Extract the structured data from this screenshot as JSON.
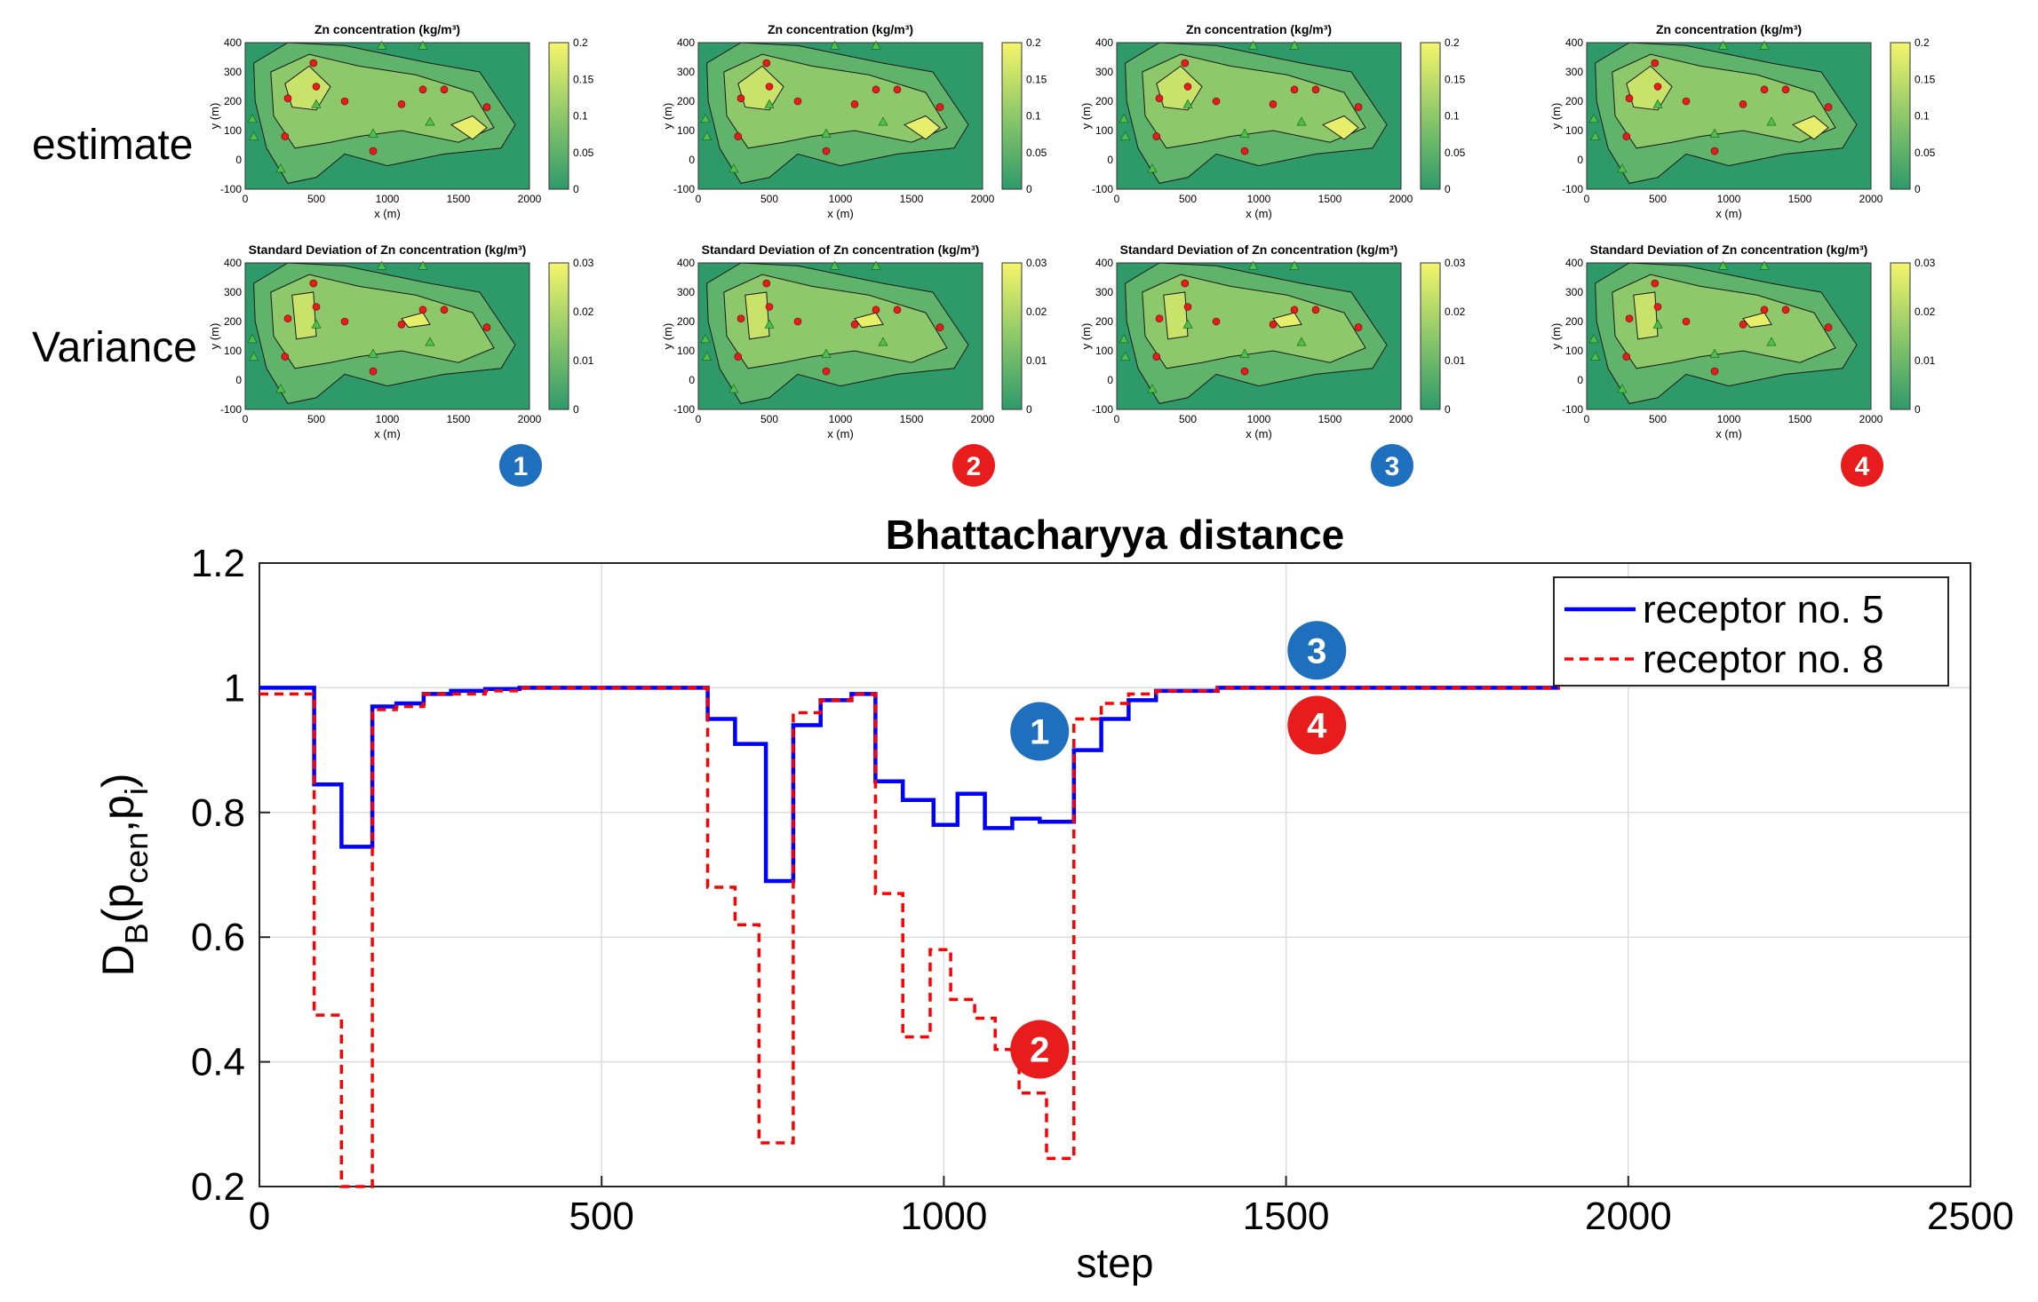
{
  "row_labels": {
    "estimate": "estimate",
    "variance": "Variance"
  },
  "panels": [
    {
      "id": "1",
      "badge_color": "#1f6fbf",
      "estimate": {
        "title": "Zn concentration (kg/m³)",
        "cbar_ticks": [
          "0.2",
          "0.15",
          "0.1",
          "0.05",
          "0"
        ]
      },
      "variance": {
        "title": "Standard Deviation  of Zn concentration (kg/m³)",
        "cbar_ticks": [
          "0.03",
          "0.02",
          "0.01",
          "0"
        ]
      }
    },
    {
      "id": "2",
      "badge_color": "#e81c1c",
      "estimate": {
        "title": "Zn concentration (kg/m³)",
        "cbar_ticks": [
          "0.2",
          "0.15",
          "0.1",
          "0.05",
          "0"
        ]
      },
      "variance": {
        "title": "Standard Deviation  of Zn concentration (kg/m³)",
        "cbar_ticks": [
          "0.03",
          "0.02",
          "0.01",
          "0"
        ]
      }
    },
    {
      "id": "3",
      "badge_color": "#1f6fbf",
      "estimate": {
        "title": "Zn concentration (kg/m³)",
        "cbar_ticks": [
          "0.2",
          "0.15",
          "0.1",
          "0.05",
          "0"
        ]
      },
      "variance": {
        "title": "Standard Deviation  of Zn concentration (kg/m³)",
        "cbar_ticks": [
          "0.03",
          "0.02",
          "0.01",
          "0"
        ]
      }
    },
    {
      "id": "4",
      "badge_color": "#e81c1c",
      "estimate": {
        "title": "Zn concentration (kg/m³)",
        "cbar_ticks": [
          "0.2",
          "0.15",
          "0.1",
          "0.05",
          "0"
        ]
      },
      "variance": {
        "title": "Standard Deviation  of Zn concentration (kg/m³)",
        "cbar_ticks": [
          "0.03",
          "0.02",
          "0.01",
          "0"
        ]
      }
    }
  ],
  "map_axes": {
    "xlabel": "x (m)",
    "ylabel": "y (m)",
    "xticks": [
      "0",
      "500",
      "1000",
      "1500",
      "2000"
    ],
    "yticks": [
      "400",
      "300",
      "200",
      "100",
      "0",
      "-100"
    ]
  },
  "map_colors": {
    "low": "#2e9a6a",
    "high": "#f5f56a",
    "receptor_marker": "#e81c1c",
    "source_marker": "#4cc24c"
  },
  "chart_data": {
    "type": "line",
    "title": "Bhattacharyya distance",
    "xlabel": "step",
    "ylabel": "D_B(p_cen,p_i)",
    "xlim": [
      0,
      2500
    ],
    "ylim": [
      0.2,
      1.2
    ],
    "xticks": [
      0,
      500,
      1000,
      1500,
      2000,
      2500
    ],
    "yticks": [
      0.2,
      0.4,
      0.6,
      0.8,
      1,
      1.2
    ],
    "grid": true,
    "legend_position": "top-right",
    "series": [
      {
        "name": "receptor no. 5",
        "color": "#0000ff",
        "style": "solid",
        "x": [
          0,
          80,
          80,
          120,
          120,
          165,
          165,
          200,
          200,
          240,
          240,
          280,
          280,
          330,
          330,
          380,
          380,
          500,
          500,
          655,
          655,
          695,
          695,
          740,
          740,
          780,
          780,
          820,
          820,
          865,
          865,
          900,
          900,
          940,
          940,
          985,
          985,
          1020,
          1020,
          1060,
          1060,
          1100,
          1100,
          1140,
          1140,
          1190,
          1190,
          1230,
          1230,
          1270,
          1270,
          1310,
          1310,
          1400,
          1400,
          1900
        ],
        "y": [
          1.0,
          1.0,
          0.845,
          0.845,
          0.745,
          0.745,
          0.97,
          0.97,
          0.975,
          0.975,
          0.99,
          0.99,
          0.995,
          0.995,
          0.998,
          0.998,
          1.0,
          1.0,
          1.0,
          1.0,
          0.95,
          0.95,
          0.91,
          0.91,
          0.69,
          0.69,
          0.94,
          0.94,
          0.98,
          0.98,
          0.99,
          0.99,
          0.85,
          0.85,
          0.82,
          0.82,
          0.78,
          0.78,
          0.83,
          0.83,
          0.775,
          0.775,
          0.79,
          0.79,
          0.785,
          0.785,
          0.9,
          0.9,
          0.95,
          0.95,
          0.98,
          0.98,
          0.995,
          0.995,
          1.0,
          1.0
        ]
      },
      {
        "name": "receptor no. 8",
        "color": "#ff0000",
        "style": "dashed",
        "x": [
          0,
          80,
          80,
          120,
          120,
          165,
          165,
          200,
          200,
          240,
          240,
          280,
          280,
          330,
          330,
          380,
          380,
          500,
          500,
          655,
          655,
          695,
          695,
          730,
          730,
          780,
          780,
          820,
          820,
          865,
          865,
          900,
          900,
          940,
          940,
          980,
          980,
          1010,
          1010,
          1045,
          1045,
          1075,
          1075,
          1110,
          1110,
          1150,
          1150,
          1190,
          1190,
          1230,
          1230,
          1270,
          1270,
          1310,
          1310,
          1400,
          1400,
          1900
        ],
        "y": [
          0.99,
          0.99,
          0.475,
          0.475,
          0.2,
          0.2,
          0.965,
          0.965,
          0.97,
          0.97,
          0.99,
          0.99,
          0.99,
          0.99,
          0.995,
          0.995,
          1.0,
          1.0,
          1.0,
          1.0,
          0.68,
          0.68,
          0.62,
          0.62,
          0.27,
          0.27,
          0.96,
          0.96,
          0.98,
          0.98,
          0.99,
          0.99,
          0.67,
          0.67,
          0.44,
          0.44,
          0.58,
          0.58,
          0.5,
          0.5,
          0.47,
          0.47,
          0.42,
          0.42,
          0.35,
          0.35,
          0.245,
          0.245,
          0.95,
          0.95,
          0.975,
          0.975,
          0.99,
          0.99,
          0.995,
          0.995,
          1.0,
          1.0
        ]
      }
    ],
    "annotations": [
      {
        "label": "1",
        "x": 1140,
        "y": 0.93,
        "color": "#1f6fbf"
      },
      {
        "label": "2",
        "x": 1140,
        "y": 0.42,
        "color": "#e81c1c"
      },
      {
        "label": "3",
        "x": 1545,
        "y": 1.06,
        "color": "#1f6fbf"
      },
      {
        "label": "4",
        "x": 1545,
        "y": 0.94,
        "color": "#e81c1c"
      }
    ]
  }
}
